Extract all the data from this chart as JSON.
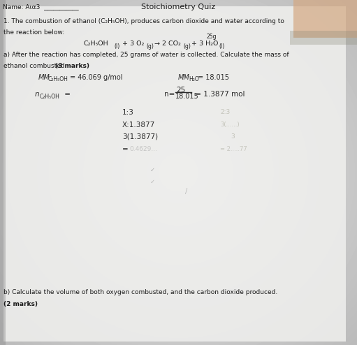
{
  "bg_color_center": "#e8e8e8",
  "bg_color_edge": "#b0b0b0",
  "paper_color": "#f2f2f2",
  "title": "Stoichiometry Quiz",
  "name_prefix": "Name: A",
  "q1_line1": "1. The combustion of ethanol (C₂H₅OH), produces carbon dioxide and water according to",
  "q1_line2": "the reaction below:",
  "reaction_line1": "C₂H₅OH",
  "reaction_subscript_m": "(l)",
  "reaction_mid": " + 3 O₂",
  "reaction_subscript_g1": "(g)",
  "reaction_arrow": " → 2 CO₂",
  "reaction_subscript_g2": "(g)",
  "reaction_end": " + 3 H₂O",
  "reaction_subscript_g3": "(l)",
  "annotation_25g": "25g",
  "part_a_line1": "a) After the reaction has completed, 25 grams of water is collected. Calculate the mass of",
  "part_a_line2": "ethanol combusted.",
  "part_a_marks": "(3 marks)",
  "mm_c2h5oh": "MM",
  "mm_c2h5oh_sub": "C₂H₅OH",
  "mm_c2h5oh_val": "= 46.069 g/mol",
  "mm_h2o": "MM",
  "mm_h2o_sub": "H₂O",
  "mm_h2o_val": "= 18.015",
  "n_label": "n",
  "n_sub": "C₂H₅OH",
  "n_eq": " =",
  "n_calc_prefix": "n=",
  "n_numerator": "25",
  "n_denominator": "18.015",
  "n_result": " = 1.3877 mol",
  "ratio": "1:3",
  "ratio_line2": "X:1.3877",
  "ratio_line3": "3(1.3877)",
  "ratio_line4": "=",
  "faint_right1": "2:3",
  "faint_right2": "3(......)",
  "faint_right3": "3",
  "faint_right4": "= 2.....77",
  "part_b_line1": "b) Calculate the volume of both oxygen combusted, and the carbon dioxide produced.",
  "part_b_marks": "(2 marks)"
}
